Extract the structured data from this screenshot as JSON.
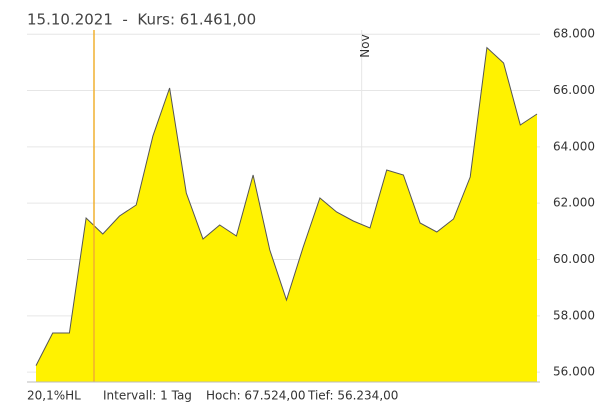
{
  "chart_data": {
    "type": "area",
    "title": "15.10.2021  -  Kurs: 61.461,00",
    "footer": [
      "20,1%HL",
      "Intervall: 1 Tag",
      "Hoch: 67.524,00",
      "Tief: 56.234,00"
    ],
    "x": [
      0,
      1,
      2,
      3,
      4,
      5,
      6,
      7,
      8,
      9,
      10,
      11,
      12,
      13,
      14,
      15,
      16,
      17,
      18,
      19,
      20,
      21,
      22,
      23,
      24,
      25,
      26,
      27,
      28,
      29,
      30
    ],
    "series": [
      {
        "color": "#fff200",
        "values": [
          56234,
          57390,
          57390,
          61474,
          60906,
          61545,
          61935,
          64386,
          66090,
          62362,
          60728,
          61225,
          60835,
          63001,
          60338,
          58562,
          60444,
          62184,
          61687,
          61367,
          61119,
          63179,
          63001,
          61296,
          60977,
          61438,
          62930,
          67524,
          66978,
          64776,
          65167
        ]
      }
    ],
    "xlim": [
      -0.54,
      30.18
    ],
    "xticks": [
      {
        "value": 19.5,
        "label": "Nov"
      }
    ],
    "ylim": [
      55650,
      68150
    ],
    "yticks": [
      {
        "value": 56000,
        "label": "56.000"
      },
      {
        "value": 58000,
        "label": "58.000"
      },
      {
        "value": 60000,
        "label": "60.000"
      },
      {
        "value": 62000,
        "label": "62.000"
      },
      {
        "value": 64000,
        "label": "64.000"
      },
      {
        "value": 66000,
        "label": "66.000"
      },
      {
        "value": 68000,
        "label": "68.000"
      }
    ],
    "grid": true
  }
}
